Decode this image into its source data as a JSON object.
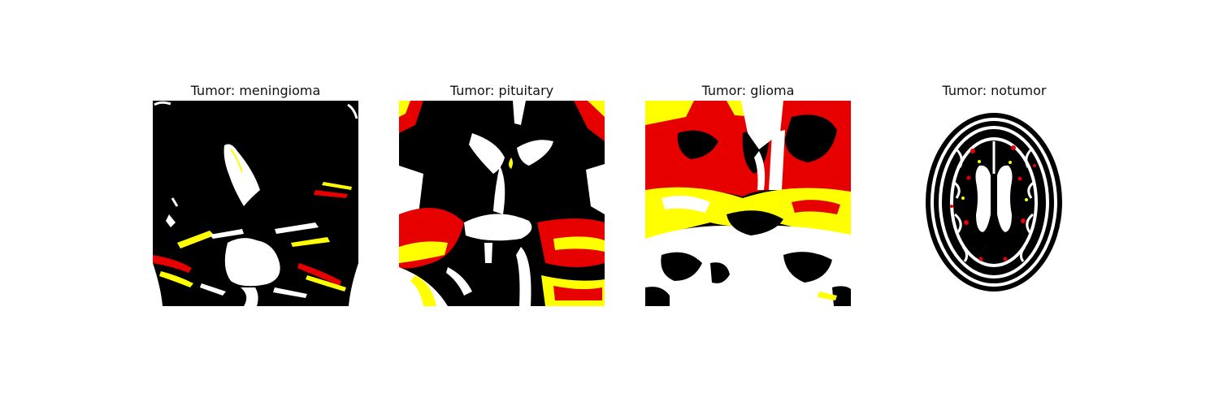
{
  "panels": [
    {
      "title": "Tumor: meningioma"
    },
    {
      "title": "Tumor: pituitary"
    },
    {
      "title": "Tumor: glioma"
    },
    {
      "title": "Tumor: notumor"
    }
  ],
  "colors": {
    "black": "#000000",
    "red": "#e60000",
    "yellow": "#ffff00",
    "white": "#ffffff"
  }
}
